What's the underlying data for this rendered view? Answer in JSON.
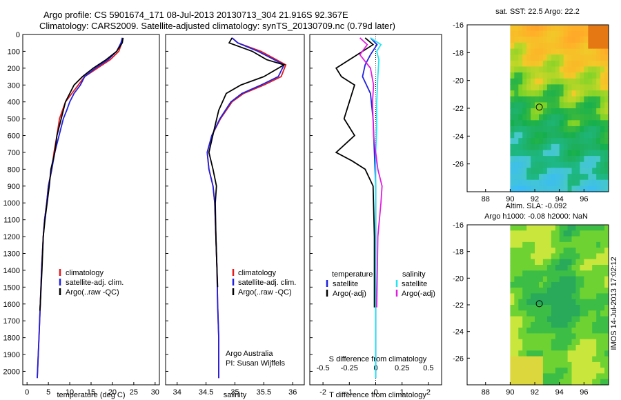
{
  "header": {
    "line1": "Argo profile: CS 5901674_171 08-Jul-2013 20130713_304 21.916S 92.367E",
    "line2": "Climatology: CARS2009. Satellite-adjusted climatology: synTS_20130709.nc (0.79d later)"
  },
  "colors": {
    "climatology": "#e41a1c",
    "satellite": "#1f1fe0",
    "argo": "#000000",
    "sal_satellite": "#22e5f0",
    "sal_argo": "#e01ee0"
  },
  "chart_data": [
    {
      "type": "line",
      "panel": "temperature",
      "xlabel": "temperature (deg C)",
      "xlim": [
        -1,
        31
      ],
      "ylim": [
        2080,
        0
      ],
      "xticks": [
        "0",
        "5",
        "10",
        "15",
        "20",
        "25",
        "30"
      ],
      "yticks": [
        "0",
        "100",
        "200",
        "300",
        "400",
        "500",
        "600",
        "700",
        "800",
        "900",
        "1000",
        "1100",
        "1200",
        "1300",
        "1400",
        "1500",
        "1600",
        "1700",
        "1800",
        "1900",
        "2000"
      ],
      "legend": [
        "climatology",
        "satellite-adj. clim.",
        "Argo(..raw -QC)"
      ],
      "series": [
        {
          "name": "climatology",
          "x": [
            22.3,
            22.2,
            21.5,
            19.5,
            16.5,
            13.5,
            12,
            10.5,
            9,
            8.3,
            7.6,
            7,
            6.3,
            5.8,
            5,
            4.6,
            4.1,
            3.8,
            3.4,
            3.1,
            2.8,
            2.4
          ],
          "y": [
            20,
            50,
            100,
            150,
            200,
            250,
            300,
            350,
            400,
            450,
            500,
            600,
            700,
            800,
            900,
            1000,
            1100,
            1200,
            1400,
            1600,
            1800,
            2040
          ]
        },
        {
          "name": "satellite-adj. clim.",
          "x": [
            22.3,
            22.0,
            21.0,
            19,
            16,
            13.5,
            12.5,
            11,
            10,
            9.3,
            8.5,
            7.5,
            6.5,
            5.8,
            5.0,
            4.6,
            4.1,
            3.8,
            3.4,
            3.1,
            2.8,
            2.4
          ],
          "y": [
            20,
            50,
            100,
            150,
            200,
            250,
            300,
            350,
            400,
            450,
            500,
            600,
            700,
            800,
            900,
            1000,
            1100,
            1200,
            1400,
            1600,
            1800,
            2040
          ]
        },
        {
          "name": "Argo(..raw -QC)",
          "x": [
            22.5,
            22.3,
            21,
            18.5,
            15.5,
            13,
            11,
            10,
            9,
            8.5,
            8,
            7,
            6.5,
            5.6,
            5.2,
            4.7,
            4.2,
            3.8,
            3.5,
            3.1,
            3.0
          ],
          "y": [
            20,
            50,
            100,
            150,
            200,
            250,
            300,
            350,
            400,
            450,
            500,
            600,
            700,
            800,
            900,
            1000,
            1100,
            1200,
            1400,
            1600,
            1640
          ]
        }
      ]
    },
    {
      "type": "line",
      "panel": "salinity",
      "xlabel": "salinity",
      "xlim": [
        33.8,
        36.2
      ],
      "ylim": [
        2080,
        0
      ],
      "xticks": [
        "34",
        "34.5",
        "35",
        "35.5",
        "36"
      ],
      "legend": [
        "climatology",
        "satellite-adj. clim.",
        "Argo(..raw -QC)"
      ],
      "annotation": [
        "Argo Australia",
        "PI: Susan Wijffels"
      ],
      "series": [
        {
          "name": "climatology",
          "x": [
            34.95,
            35.05,
            35.45,
            35.88,
            35.8,
            35.5,
            35.15,
            34.95,
            34.75,
            34.6,
            34.52,
            34.55,
            34.62,
            34.65,
            34.67,
            34.69,
            34.7,
            34.72,
            34.72
          ],
          "y": [
            20,
            50,
            100,
            180,
            250,
            300,
            350,
            400,
            500,
            600,
            700,
            800,
            900,
            1000,
            1200,
            1400,
            1600,
            1800,
            2040
          ]
        },
        {
          "name": "satellite-adj. clim.",
          "x": [
            34.95,
            35.05,
            35.4,
            35.85,
            35.75,
            35.45,
            35.12,
            34.93,
            34.74,
            34.6,
            34.52,
            34.55,
            34.62,
            34.65,
            34.67,
            34.69,
            34.7,
            34.72,
            34.72
          ],
          "y": [
            20,
            50,
            100,
            180,
            250,
            300,
            350,
            400,
            500,
            600,
            700,
            800,
            900,
            1000,
            1200,
            1400,
            1600,
            1800,
            2040
          ]
        },
        {
          "name": "Argo(..raw -QC)",
          "x": [
            34.95,
            34.9,
            35.3,
            35.55,
            35.85,
            35.5,
            35.1,
            34.85,
            34.72,
            34.65,
            34.55,
            34.62,
            34.68,
            34.66,
            34.67,
            34.69,
            34.7
          ],
          "y": [
            20,
            50,
            100,
            150,
            180,
            250,
            300,
            350,
            450,
            550,
            700,
            800,
            900,
            1000,
            1200,
            1400,
            1500
          ]
        }
      ]
    },
    {
      "type": "line",
      "panel": "difference",
      "xlabel_top": "S difference from climatology",
      "xlabel": "T difference from climatology",
      "xticks_bottom": [
        "-2",
        "-1",
        "0",
        "1",
        "2"
      ],
      "xticks_top": [
        "-0.5",
        "-0.25",
        "0",
        "0.25",
        "0.5"
      ],
      "xlim": [
        -2.5,
        2.5
      ],
      "ylim": [
        2080,
        0
      ],
      "legend_titles": [
        "temperature",
        "salinity"
      ],
      "legend": [
        "satellite",
        "Argo(-adj)",
        "satellite",
        "Argo(-adj)"
      ],
      "series": [
        {
          "name": "temperature satellite",
          "x": [
            -0.2,
            0.05,
            -0.2,
            -0.4,
            -0.5,
            -0.2,
            -0.1,
            -0.05,
            0,
            0,
            0,
            0,
            0
          ],
          "y": [
            20,
            60,
            120,
            180,
            250,
            350,
            500,
            700,
            900,
            1200,
            1500,
            1800,
            2040
          ]
        },
        {
          "name": "temperature Argo(-adj)",
          "x": [
            -0.4,
            -0.1,
            -1.0,
            -1.5,
            -1.3,
            -0.8,
            -1.0,
            -1.2,
            -0.8,
            -1.5,
            -0.9,
            -0.4,
            -0.1,
            -0.05,
            -0.05
          ],
          "y": [
            20,
            60,
            150,
            200,
            250,
            300,
            400,
            500,
            600,
            700,
            750,
            800,
            900,
            1200,
            1620
          ]
        },
        {
          "name": "salinity satellite",
          "x": [
            -0.05,
            0.05,
            0.01,
            0.03,
            0.02,
            0.01,
            0.01,
            0.0,
            0.0,
            0.0,
            0.0,
            0.0
          ],
          "y": [
            20,
            60,
            100,
            150,
            250,
            400,
            550,
            700,
            900,
            1200,
            1600,
            2040
          ]
        },
        {
          "name": "salinity Argo(-adj)",
          "x": [
            -0.15,
            -0.08,
            -0.15,
            -0.05,
            -0.02,
            -0.03,
            -0.02,
            0.02,
            0.06,
            0.05,
            0.02,
            0.01
          ],
          "y": [
            20,
            60,
            120,
            200,
            300,
            400,
            600,
            800,
            900,
            1000,
            1200,
            1620
          ]
        }
      ]
    },
    {
      "type": "heatmap",
      "panel": "sst",
      "title": "sat. SST: 22.5 Argo: 22.2",
      "xticks": [
        "88",
        "90",
        "92",
        "94",
        "96"
      ],
      "yticks": [
        "-16",
        "-18",
        "-20",
        "-22",
        "-24",
        "-26"
      ],
      "xlim": [
        86.5,
        98
      ],
      "ylim": [
        -16,
        -28
      ],
      "marker": [
        92.367,
        -21.916
      ]
    },
    {
      "type": "heatmap",
      "panel": "sla",
      "title": "Altim. SLA: -0.092",
      "subtitle": "Argo h1000: -0.08 h2000: NaN",
      "xticks": [
        "88",
        "90",
        "92",
        "94",
        "96"
      ],
      "yticks": [
        "-16",
        "-18",
        "-20",
        "-22",
        "-24",
        "-26"
      ],
      "xlim": [
        86.5,
        98
      ],
      "ylim": [
        -16,
        -28
      ],
      "marker": [
        92.367,
        -21.916
      ]
    }
  ],
  "watermark": "IMOS 14-Jul-2013 17:02:12"
}
